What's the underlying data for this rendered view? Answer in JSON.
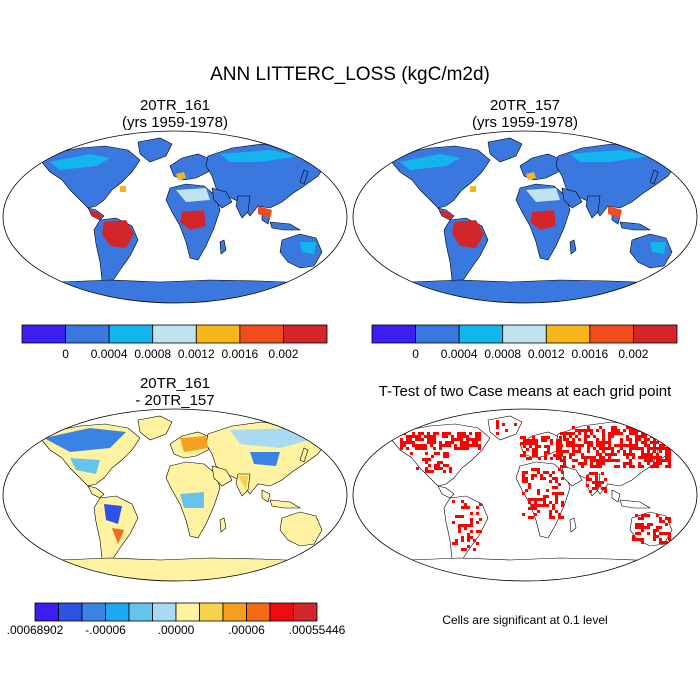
{
  "figure_title": "ANN LITTERC_LOSS (kgC/m2d)",
  "panels": [
    {
      "title_line1": "20TR_161",
      "title_line2": "(yrs 1959-1978)"
    },
    {
      "title_line1": "20TR_157",
      "title_line2": "(yrs 1959-1978)"
    },
    {
      "title_line1": "20TR_161",
      "title_line2": "- 20TR_157"
    },
    {
      "title_line1": "T-Test of two Case means at each grid point",
      "title_line2": ""
    }
  ],
  "colorbar_top": {
    "colors": [
      "#3b1ff0",
      "#3a78e0",
      "#13b6ec",
      "#bfe3ef",
      "#f7b51c",
      "#f04c1c",
      "#d3262b"
    ],
    "labels": [
      "0",
      "0.0004",
      "0.0008",
      "0.0012",
      "0.0016",
      "0.002"
    ]
  },
  "colorbar_diff": {
    "colors": [
      "#3b1ff0",
      "#2f52e6",
      "#3a82e4",
      "#1ea8f0",
      "#64c4ee",
      "#a9daf3",
      "#fff2a0",
      "#f8d24a",
      "#f7a020",
      "#f56a14",
      "#ec0e0e",
      "#d3262b"
    ],
    "labels": [
      ".00068902",
      "-.00006",
      ".00000",
      ".00006",
      ".00055446"
    ]
  },
  "ttest_color": "#ff0000",
  "significance_note": "Cells are significant at 0.1 level"
}
